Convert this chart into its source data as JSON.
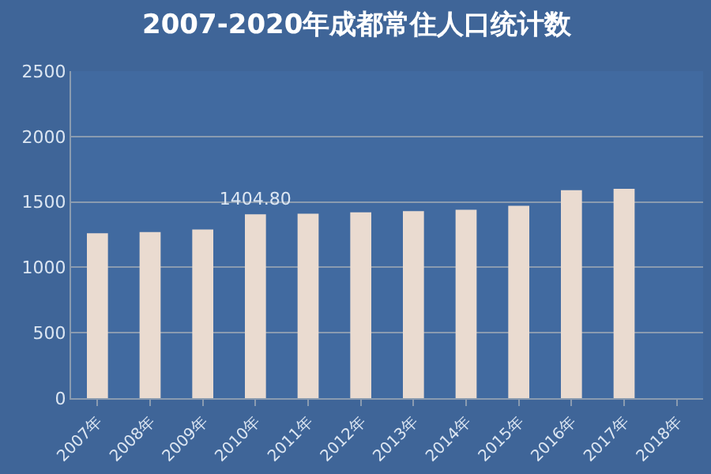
{
  "chart_data": {
    "type": "bar",
    "title": "2007-2020年成都常住人口统计数",
    "categories": [
      "2007年",
      "2008年",
      "2009年",
      "2010年",
      "2011年",
      "2012年",
      "2013年",
      "2014年",
      "2015年",
      "2016年",
      "2017年",
      "2018年"
    ],
    "values": [
      1260,
      1270,
      1290,
      1404.8,
      1410,
      1420,
      1430,
      1440,
      1470,
      1590,
      1600,
      null
    ],
    "value_labels": [
      null,
      null,
      null,
      "1404.80",
      null,
      null,
      null,
      null,
      null,
      null,
      null,
      null
    ],
    "color": "#eadbd0",
    "ylim": [
      0,
      2500
    ],
    "yticks": [
      0,
      500,
      1000,
      1500,
      2000,
      2500
    ],
    "grid": "y"
  }
}
